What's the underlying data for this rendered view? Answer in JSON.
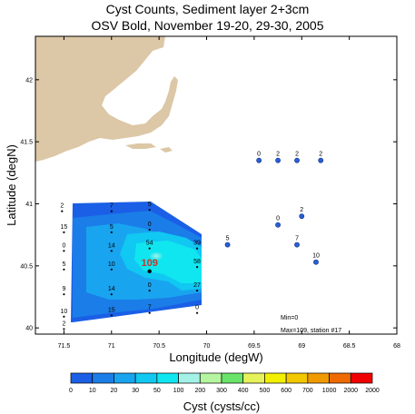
{
  "title_line1": "Cyst Counts, Sediment layer 2+3cm",
  "title_line2": "OSV Bold, November 19-20, 29-30, 2005",
  "x_axis": {
    "label": "Longitude (degW)",
    "ticks": [
      {
        "v": 71.5,
        "label": "71.5"
      },
      {
        "v": 71,
        "label": "71"
      },
      {
        "v": 70.5,
        "label": "70.5"
      },
      {
        "v": 70,
        "label": "70"
      },
      {
        "v": 69.5,
        "label": "69.5"
      },
      {
        "v": 69,
        "label": "69"
      },
      {
        "v": 68.5,
        "label": "68.5"
      },
      {
        "v": 68,
        "label": "68"
      }
    ]
  },
  "y_axis": {
    "label": "Latitude (degN)",
    "ticks": [
      {
        "v": 40,
        "label": "40"
      },
      {
        "v": 40.5,
        "label": "40.5"
      },
      {
        "v": 41,
        "label": "41"
      },
      {
        "v": 41.5,
        "label": "41.5"
      },
      {
        "v": 42,
        "label": "42"
      }
    ]
  },
  "colors": {
    "land": "#dcc7a6",
    "station_dot": "#2a5fd6"
  },
  "colorbar": {
    "label": "Cyst (cysts/cc)",
    "bins": [
      {
        "label": "0",
        "color": "#1a5fe6"
      },
      {
        "label": "10",
        "color": "#1b7de8"
      },
      {
        "label": "20",
        "color": "#19a4f0"
      },
      {
        "label": "30",
        "color": "#10c8f2"
      },
      {
        "label": "50",
        "color": "#10e6f0"
      },
      {
        "label": "100",
        "color": "#a4f2e6"
      },
      {
        "label": "200",
        "color": "#b6f5a0"
      },
      {
        "label": "300",
        "color": "#6ae36a"
      },
      {
        "label": "400",
        "color": "#e6f25a"
      },
      {
        "label": "500",
        "color": "#f2f000"
      },
      {
        "label": "600",
        "color": "#f2c800"
      },
      {
        "label": "700",
        "color": "#f09a00"
      },
      {
        "label": "1000",
        "color": "#ef6a00"
      },
      {
        "label": "2000",
        "color": "#f00000"
      }
    ],
    "end_label": "2000"
  },
  "annotations": {
    "min": "Min=0",
    "max": "Max=109, station #17",
    "max_value": "109"
  },
  "stations_isolated": [
    {
      "lon": 69.45,
      "lat": 41.35,
      "label": "0"
    },
    {
      "lon": 69.25,
      "lat": 41.35,
      "label": "2"
    },
    {
      "lon": 69.05,
      "lat": 41.35,
      "label": "2"
    },
    {
      "lon": 68.8,
      "lat": 41.35,
      "label": "2"
    },
    {
      "lon": 69.25,
      "lat": 40.83,
      "label": "0"
    },
    {
      "lon": 69.0,
      "lat": 40.9,
      "label": "2"
    },
    {
      "lon": 69.05,
      "lat": 40.67,
      "label": "7"
    },
    {
      "lon": 68.85,
      "lat": 40.53,
      "label": "10"
    },
    {
      "lon": 69.78,
      "lat": 40.67,
      "label": "5"
    }
  ],
  "stations_grid": [
    {
      "lon": 71.52,
      "lat": 40.97,
      "label": "2"
    },
    {
      "lon": 71.5,
      "lat": 40.8,
      "label": "15"
    },
    {
      "lon": 71.5,
      "lat": 40.65,
      "label": "0"
    },
    {
      "lon": 71.5,
      "lat": 40.5,
      "label": "5"
    },
    {
      "lon": 71.5,
      "lat": 40.3,
      "label": "9"
    },
    {
      "lon": 71.5,
      "lat": 40.12,
      "label": "10"
    },
    {
      "lon": 71.5,
      "lat": 40.02,
      "label": "2"
    },
    {
      "lon": 71.0,
      "lat": 40.97,
      "label": "7"
    },
    {
      "lon": 71.0,
      "lat": 40.8,
      "label": "5"
    },
    {
      "lon": 71.0,
      "lat": 40.65,
      "label": "14"
    },
    {
      "lon": 71.0,
      "lat": 40.5,
      "label": "10"
    },
    {
      "lon": 71.0,
      "lat": 40.3,
      "label": "14"
    },
    {
      "lon": 71.0,
      "lat": 40.13,
      "label": "15"
    },
    {
      "lon": 70.6,
      "lat": 40.98,
      "label": "5"
    },
    {
      "lon": 70.6,
      "lat": 40.82,
      "label": "0"
    },
    {
      "lon": 70.6,
      "lat": 40.67,
      "label": "54"
    },
    {
      "lon": 70.6,
      "lat": 40.33,
      "label": "0"
    },
    {
      "lon": 70.6,
      "lat": 40.15,
      "label": "7"
    },
    {
      "lon": 70.1,
      "lat": 40.67,
      "label": "39"
    },
    {
      "lon": 70.1,
      "lat": 40.52,
      "label": "58"
    },
    {
      "lon": 70.1,
      "lat": 40.33,
      "label": "27"
    },
    {
      "lon": 70.1,
      "lat": 40.15,
      "label": "0"
    }
  ],
  "max_station": {
    "lon": 70.6,
    "lat": 40.5
  }
}
